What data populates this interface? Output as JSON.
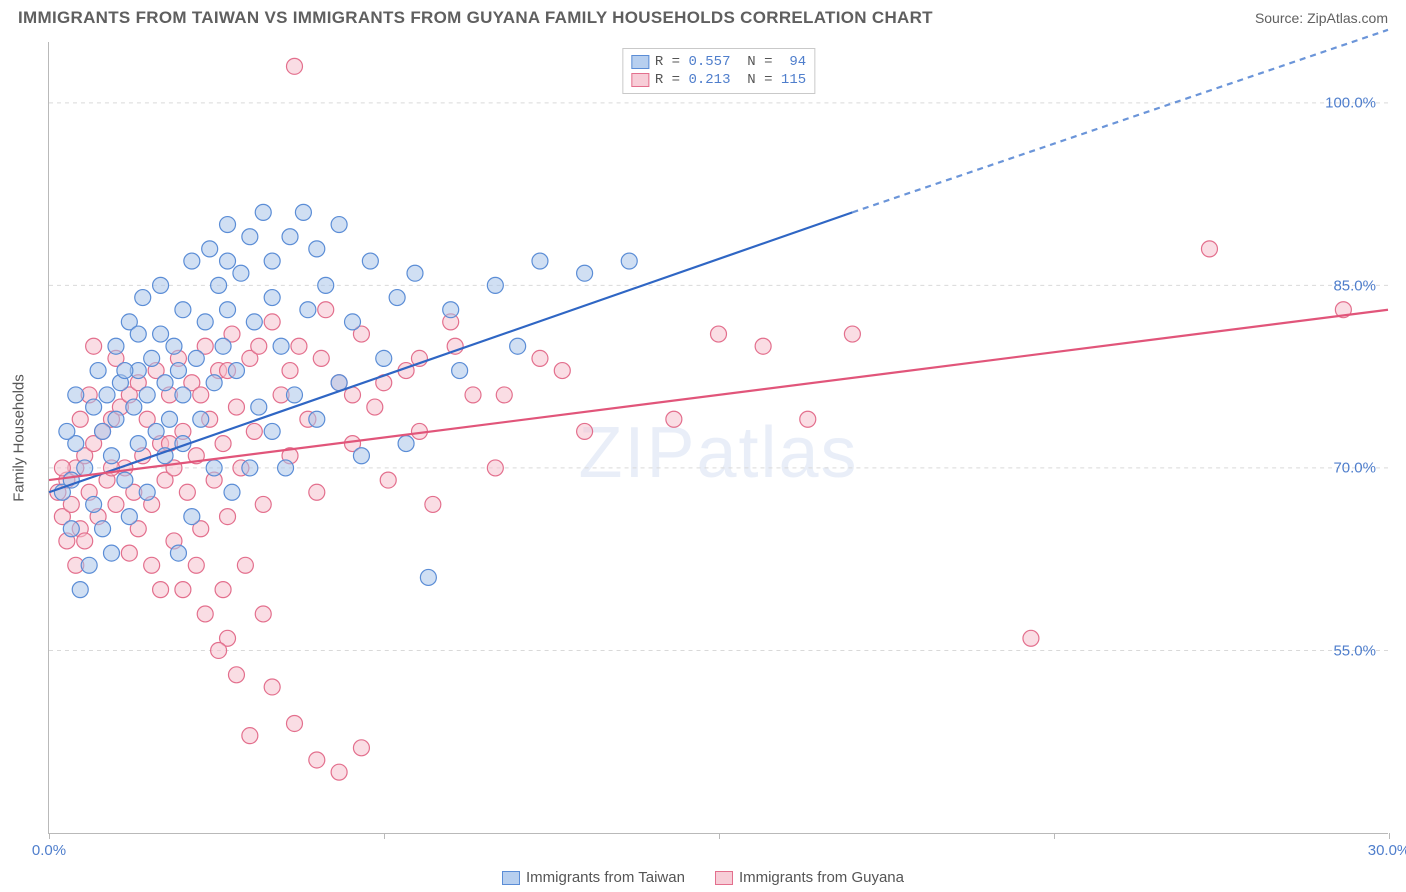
{
  "title": "IMMIGRANTS FROM TAIWAN VS IMMIGRANTS FROM GUYANA FAMILY HOUSEHOLDS CORRELATION CHART",
  "source_label": "Source: ",
  "source_name": "ZipAtlas.com",
  "watermark": "ZIPatlas",
  "y_axis_title": "Family Households",
  "chart": {
    "type": "scatter",
    "x_range": [
      0.0,
      30.0
    ],
    "y_range": [
      40.0,
      105.0
    ],
    "y_ticks": [
      55.0,
      70.0,
      85.0,
      100.0
    ],
    "y_tick_labels": [
      "55.0%",
      "70.0%",
      "85.0%",
      "100.0%"
    ],
    "x_ticks": [
      0.0,
      7.5,
      15.0,
      22.5,
      30.0
    ],
    "x_tick_labels_shown": {
      "0.0": "0.0%",
      "30.0": "30.0%"
    },
    "background_color": "#ffffff",
    "grid_color": "#d9d9d9",
    "axis_color": "#b9b9b9",
    "tick_label_color": "#4f7ecc",
    "marker_radius": 8,
    "marker_opacity": 0.55,
    "series": [
      {
        "name": "Immigrants from Taiwan",
        "color_fill": "#a9c4ea",
        "color_stroke": "#5b8dd6",
        "legend_swatch_fill": "#b7cfef",
        "legend_swatch_stroke": "#5b8dd6",
        "R": "0.557",
        "N": "94",
        "trend": {
          "x1": 0.0,
          "y1": 68.0,
          "x2": 18.0,
          "y2": 91.0,
          "extrap_x2": 30.0,
          "extrap_y2": 106.0,
          "solid_color": "#2f66c4",
          "dash_color": "#6b95d9",
          "width": 2.2
        },
        "points": [
          [
            0.3,
            68
          ],
          [
            0.5,
            65
          ],
          [
            0.6,
            72
          ],
          [
            0.8,
            70
          ],
          [
            1.0,
            75
          ],
          [
            1.0,
            67
          ],
          [
            1.1,
            78
          ],
          [
            1.2,
            73
          ],
          [
            1.3,
            76
          ],
          [
            1.4,
            71
          ],
          [
            1.5,
            80
          ],
          [
            1.5,
            74
          ],
          [
            1.6,
            77
          ],
          [
            1.7,
            69
          ],
          [
            1.8,
            82
          ],
          [
            1.9,
            75
          ],
          [
            2.0,
            78
          ],
          [
            2.0,
            72
          ],
          [
            2.1,
            84
          ],
          [
            2.2,
            76
          ],
          [
            2.3,
            79
          ],
          [
            2.4,
            73
          ],
          [
            2.5,
            81
          ],
          [
            2.5,
            85
          ],
          [
            2.6,
            77
          ],
          [
            2.7,
            74
          ],
          [
            2.8,
            80
          ],
          [
            2.9,
            78
          ],
          [
            3.0,
            83
          ],
          [
            3.0,
            76
          ],
          [
            3.2,
            87
          ],
          [
            3.3,
            79
          ],
          [
            3.4,
            74
          ],
          [
            3.5,
            82
          ],
          [
            3.6,
            88
          ],
          [
            3.7,
            77
          ],
          [
            3.8,
            85
          ],
          [
            3.9,
            80
          ],
          [
            4.0,
            90
          ],
          [
            4.0,
            83
          ],
          [
            4.2,
            78
          ],
          [
            4.3,
            86
          ],
          [
            4.5,
            89
          ],
          [
            4.6,
            82
          ],
          [
            4.8,
            91
          ],
          [
            5.0,
            87
          ],
          [
            5.0,
            84
          ],
          [
            5.2,
            80
          ],
          [
            5.4,
            89
          ],
          [
            5.5,
            76
          ],
          [
            5.7,
            91
          ],
          [
            5.8,
            83
          ],
          [
            6.0,
            88
          ],
          [
            6.2,
            85
          ],
          [
            6.5,
            90
          ],
          [
            6.8,
            82
          ],
          [
            7.0,
            71
          ],
          [
            7.2,
            87
          ],
          [
            7.5,
            79
          ],
          [
            7.8,
            84
          ],
          [
            8.0,
            72
          ],
          [
            8.2,
            86
          ],
          [
            8.5,
            61
          ],
          [
            9.0,
            83
          ],
          [
            9.2,
            78
          ],
          [
            10.0,
            85
          ],
          [
            10.5,
            80
          ],
          [
            11.0,
            87
          ],
          [
            12.0,
            86
          ],
          [
            13.0,
            87
          ],
          [
            2.9,
            63
          ],
          [
            3.2,
            66
          ],
          [
            4.1,
            68
          ],
          [
            4.5,
            70
          ],
          [
            5.0,
            73
          ],
          [
            1.8,
            66
          ],
          [
            1.4,
            63
          ],
          [
            0.9,
            62
          ],
          [
            0.7,
            60
          ],
          [
            3.7,
            70
          ],
          [
            2.2,
            68
          ],
          [
            6.0,
            74
          ],
          [
            6.5,
            77
          ],
          [
            5.3,
            70
          ],
          [
            4.7,
            75
          ],
          [
            0.5,
            69
          ],
          [
            0.4,
            73
          ],
          [
            0.6,
            76
          ],
          [
            2.0,
            81
          ],
          [
            4.0,
            87
          ],
          [
            3.0,
            72
          ],
          [
            1.2,
            65
          ],
          [
            1.7,
            78
          ],
          [
            2.6,
            71
          ]
        ]
      },
      {
        "name": "Immigrants from Guyana",
        "color_fill": "#f5c1cd",
        "color_stroke": "#e36f8d",
        "legend_swatch_fill": "#f7cdd7",
        "legend_swatch_stroke": "#e36f8d",
        "R": "0.213",
        "N": "115",
        "trend": {
          "x1": 0.0,
          "y1": 69.0,
          "x2": 30.0,
          "y2": 83.0,
          "solid_color": "#e1557a",
          "width": 2.2
        },
        "points": [
          [
            0.2,
            68
          ],
          [
            0.3,
            66
          ],
          [
            0.4,
            69
          ],
          [
            0.5,
            67
          ],
          [
            0.6,
            70
          ],
          [
            0.7,
            65
          ],
          [
            0.8,
            71
          ],
          [
            0.9,
            68
          ],
          [
            1.0,
            72
          ],
          [
            1.1,
            66
          ],
          [
            1.2,
            73
          ],
          [
            1.3,
            69
          ],
          [
            1.4,
            74
          ],
          [
            1.5,
            67
          ],
          [
            1.6,
            75
          ],
          [
            1.7,
            70
          ],
          [
            1.8,
            76
          ],
          [
            1.9,
            68
          ],
          [
            2.0,
            77
          ],
          [
            2.1,
            71
          ],
          [
            2.2,
            74
          ],
          [
            2.3,
            67
          ],
          [
            2.4,
            78
          ],
          [
            2.5,
            72
          ],
          [
            2.6,
            69
          ],
          [
            2.7,
            76
          ],
          [
            2.8,
            70
          ],
          [
            2.9,
            79
          ],
          [
            3.0,
            73
          ],
          [
            3.1,
            68
          ],
          [
            3.2,
            77
          ],
          [
            3.3,
            71
          ],
          [
            3.4,
            65
          ],
          [
            3.5,
            80
          ],
          [
            3.6,
            74
          ],
          [
            3.7,
            69
          ],
          [
            3.8,
            78
          ],
          [
            3.9,
            72
          ],
          [
            4.0,
            66
          ],
          [
            4.1,
            81
          ],
          [
            4.2,
            75
          ],
          [
            4.3,
            70
          ],
          [
            4.5,
            79
          ],
          [
            4.6,
            73
          ],
          [
            4.8,
            67
          ],
          [
            5.0,
            82
          ],
          [
            5.2,
            76
          ],
          [
            5.4,
            71
          ],
          [
            5.6,
            80
          ],
          [
            5.8,
            74
          ],
          [
            6.0,
            68
          ],
          [
            6.2,
            83
          ],
          [
            6.5,
            77
          ],
          [
            6.8,
            72
          ],
          [
            7.0,
            81
          ],
          [
            7.3,
            75
          ],
          [
            7.6,
            69
          ],
          [
            8.0,
            78
          ],
          [
            8.3,
            73
          ],
          [
            8.6,
            67
          ],
          [
            9.0,
            82
          ],
          [
            9.5,
            76
          ],
          [
            10.0,
            70
          ],
          [
            11.0,
            79
          ],
          [
            12.0,
            73
          ],
          [
            14.0,
            74
          ],
          [
            16.0,
            80
          ],
          [
            18.0,
            81
          ],
          [
            3.0,
            60
          ],
          [
            3.5,
            58
          ],
          [
            4.0,
            56
          ],
          [
            4.5,
            48
          ],
          [
            5.0,
            52
          ],
          [
            5.5,
            49
          ],
          [
            6.0,
            46
          ],
          [
            6.5,
            45
          ],
          [
            7.0,
            47
          ],
          [
            3.8,
            55
          ],
          [
            2.5,
            60
          ],
          [
            4.2,
            53
          ],
          [
            4.8,
            58
          ],
          [
            5.5,
            103
          ],
          [
            26.0,
            88
          ],
          [
            22.0,
            56
          ],
          [
            29.0,
            83
          ],
          [
            17.0,
            74
          ],
          [
            15.0,
            81
          ],
          [
            1.0,
            80
          ],
          [
            1.5,
            79
          ],
          [
            0.7,
            74
          ],
          [
            0.9,
            76
          ],
          [
            1.8,
            63
          ],
          [
            2.3,
            62
          ],
          [
            2.8,
            64
          ],
          [
            3.3,
            62
          ],
          [
            3.9,
            60
          ],
          [
            4.4,
            62
          ],
          [
            0.4,
            64
          ],
          [
            0.6,
            62
          ],
          [
            0.3,
            70
          ],
          [
            0.8,
            64
          ],
          [
            1.4,
            70
          ],
          [
            2.0,
            65
          ],
          [
            2.7,
            72
          ],
          [
            3.4,
            76
          ],
          [
            4.0,
            78
          ],
          [
            4.7,
            80
          ],
          [
            5.4,
            78
          ],
          [
            6.1,
            79
          ],
          [
            6.8,
            76
          ],
          [
            7.5,
            77
          ],
          [
            8.3,
            79
          ],
          [
            9.1,
            80
          ],
          [
            10.2,
            76
          ],
          [
            11.5,
            78
          ]
        ]
      }
    ]
  },
  "legend_labels": {
    "R_label": "R =",
    "N_label": "N ="
  }
}
